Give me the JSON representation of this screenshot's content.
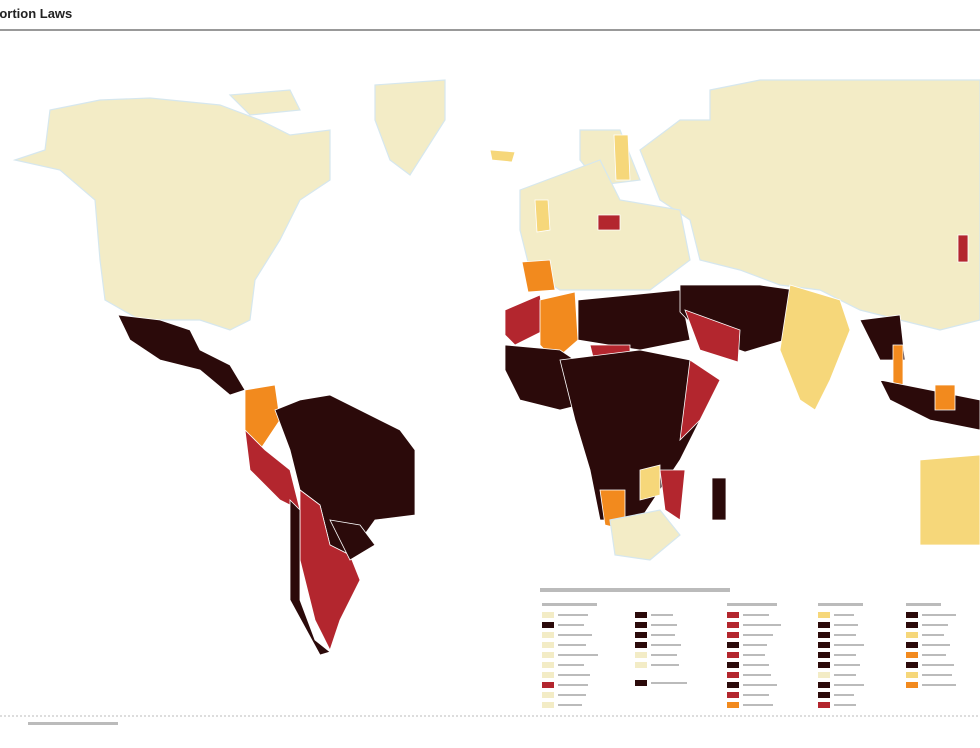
{
  "header": {
    "title": "Abortion Laws"
  }
}
